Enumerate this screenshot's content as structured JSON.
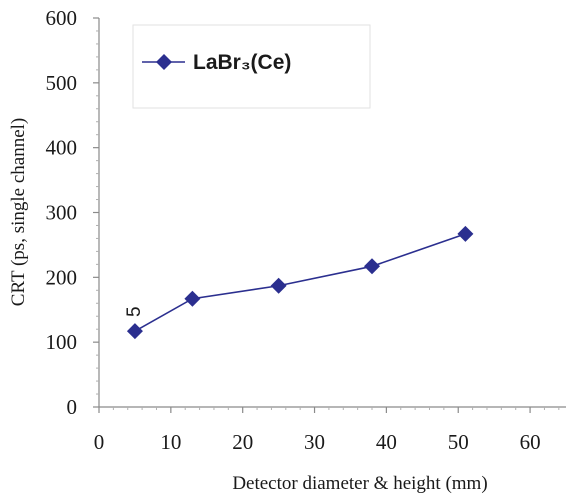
{
  "chart_data": {
    "type": "line",
    "xlabel": "Detector diameter & height (mm)",
    "ylabel": "CRT (ps, single channel)",
    "xlim": [
      0,
      65
    ],
    "ylim": [
      0,
      600
    ],
    "xticks": [
      0,
      10,
      20,
      30,
      40,
      50,
      60
    ],
    "yticks": [
      0,
      100,
      200,
      300,
      400,
      500,
      600
    ],
    "grid": false,
    "legend_position": "top-left",
    "series": [
      {
        "name": "LaBr₃(Ce)",
        "marker": "diamond",
        "color": "#2b2f8f",
        "x": [
          5,
          13,
          25,
          38,
          51
        ],
        "y": [
          117,
          167,
          187,
          217,
          267
        ]
      }
    ],
    "annotations": [
      {
        "text": "5",
        "x": 5,
        "y": 147,
        "rotated": true
      }
    ]
  }
}
